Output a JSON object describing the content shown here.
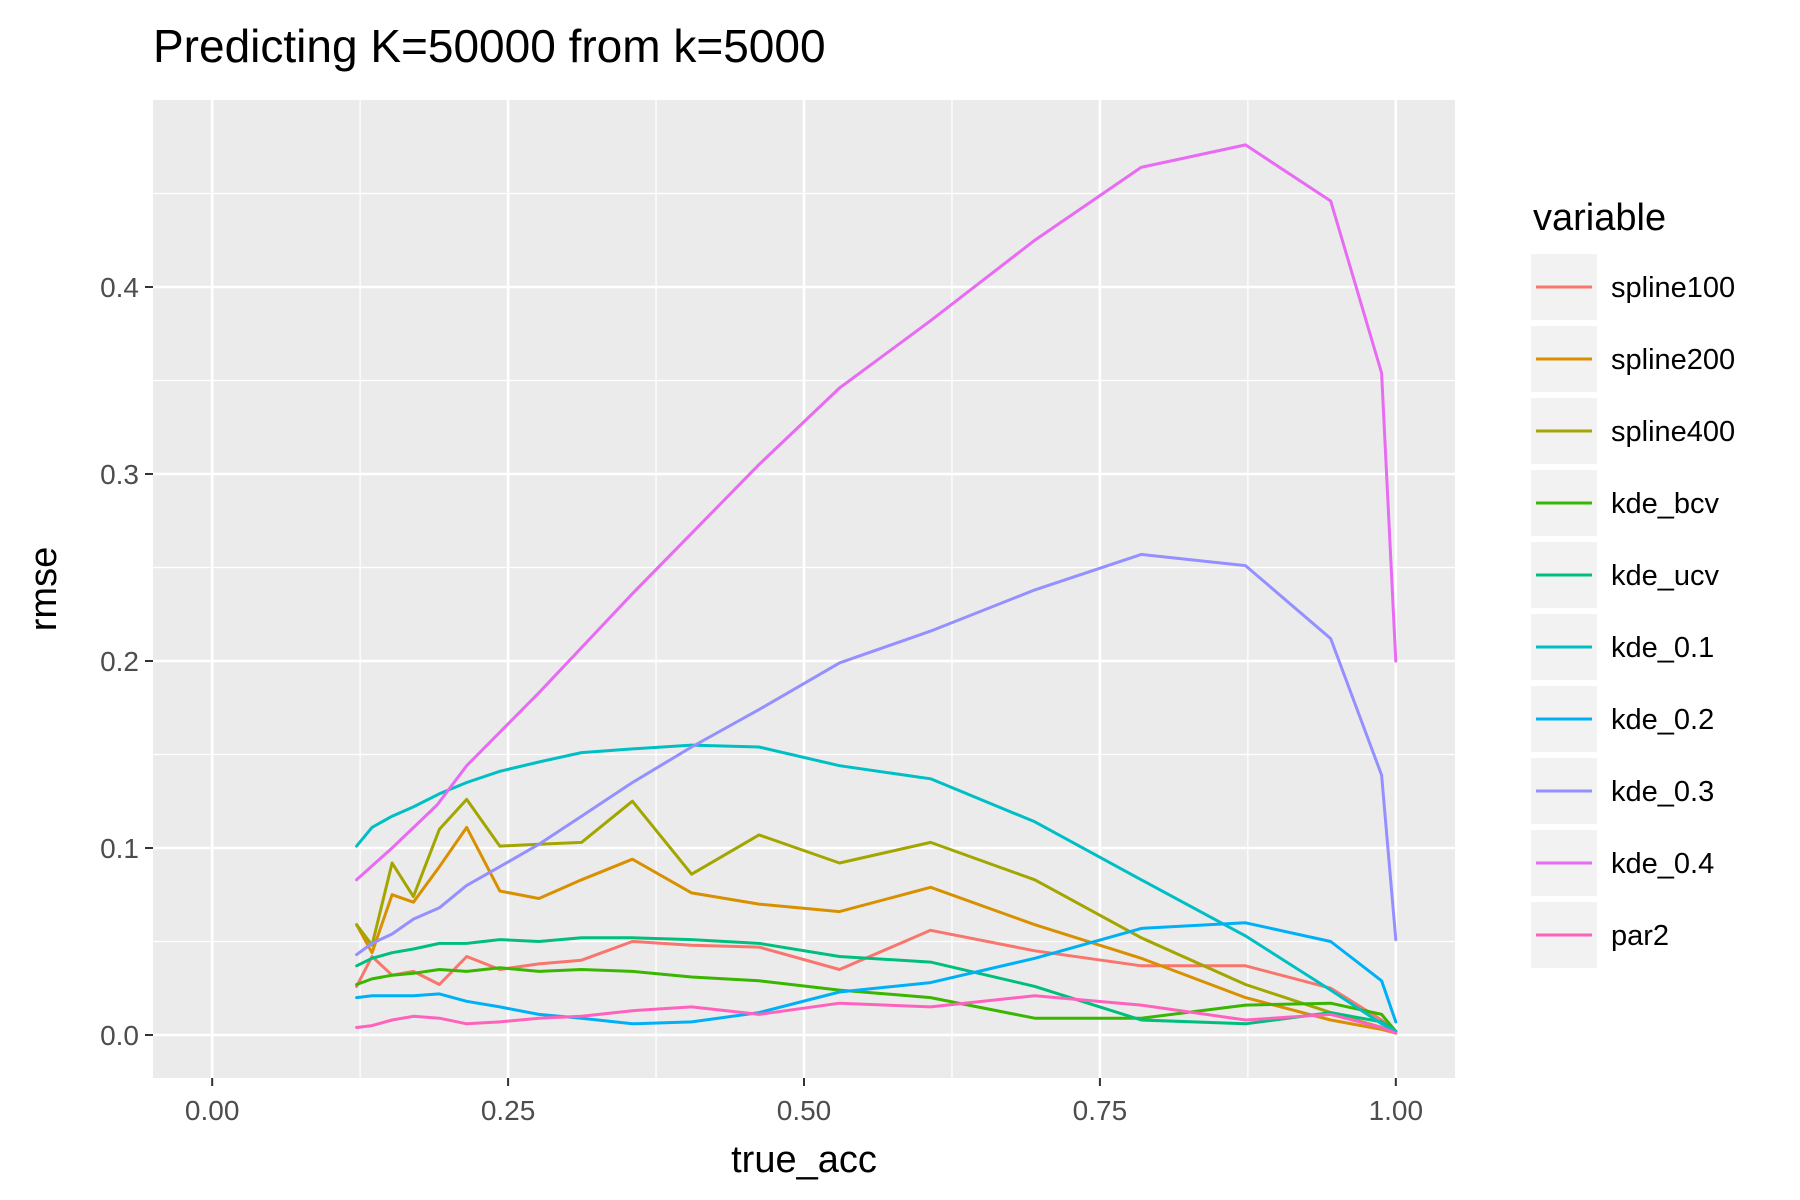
{
  "chart_data": {
    "type": "line",
    "title": "Predicting K=50000 from k=5000",
    "xlabel": "true_acc",
    "ylabel": "rmse",
    "xlim": [
      -0.05,
      1.05
    ],
    "ylim": [
      -0.023,
      0.5
    ],
    "x_ticks": [
      "0.00",
      "0.25",
      "0.50",
      "0.75",
      "1.00"
    ],
    "y_ticks": [
      "0.0",
      "0.1",
      "0.2",
      "0.3",
      "0.4"
    ],
    "grid": true,
    "legend_title": "variable",
    "legend_position": "right",
    "series": [
      {
        "name": "spline100",
        "color": "#F8766D",
        "points": [
          [
            0.122,
            0.026
          ],
          [
            0.135,
            0.042
          ],
          [
            0.152,
            0.032
          ],
          [
            0.17,
            0.034
          ],
          [
            0.192,
            0.027
          ],
          [
            0.215,
            0.042
          ],
          [
            0.243,
            0.035
          ],
          [
            0.276,
            0.038
          ],
          [
            0.312,
            0.04
          ],
          [
            0.355,
            0.05
          ],
          [
            0.405,
            0.048
          ],
          [
            0.462,
            0.047
          ],
          [
            0.53,
            0.035
          ],
          [
            0.607,
            0.056
          ],
          [
            0.695,
            0.045
          ],
          [
            0.785,
            0.037
          ],
          [
            0.873,
            0.037
          ],
          [
            0.945,
            0.025
          ],
          [
            0.988,
            0.008
          ],
          [
            1.0,
            0.002
          ]
        ]
      },
      {
        "name": "spline200",
        "color": "#D89000",
        "points": [
          [
            0.122,
            0.059
          ],
          [
            0.135,
            0.044
          ],
          [
            0.152,
            0.075
          ],
          [
            0.17,
            0.071
          ],
          [
            0.192,
            0.09
          ],
          [
            0.215,
            0.111
          ],
          [
            0.243,
            0.077
          ],
          [
            0.276,
            0.073
          ],
          [
            0.312,
            0.083
          ],
          [
            0.355,
            0.094
          ],
          [
            0.405,
            0.076
          ],
          [
            0.462,
            0.07
          ],
          [
            0.53,
            0.066
          ],
          [
            0.607,
            0.079
          ],
          [
            0.695,
            0.059
          ],
          [
            0.785,
            0.041
          ],
          [
            0.873,
            0.02
          ],
          [
            0.945,
            0.008
          ],
          [
            0.988,
            0.003
          ],
          [
            1.0,
            0.001
          ]
        ]
      },
      {
        "name": "spline400",
        "color": "#A3A500",
        "points": [
          [
            0.122,
            0.059
          ],
          [
            0.135,
            0.048
          ],
          [
            0.152,
            0.092
          ],
          [
            0.17,
            0.074
          ],
          [
            0.192,
            0.11
          ],
          [
            0.215,
            0.126
          ],
          [
            0.243,
            0.101
          ],
          [
            0.276,
            0.102
          ],
          [
            0.312,
            0.103
          ],
          [
            0.355,
            0.125
          ],
          [
            0.405,
            0.086
          ],
          [
            0.462,
            0.107
          ],
          [
            0.53,
            0.092
          ],
          [
            0.607,
            0.103
          ],
          [
            0.695,
            0.083
          ],
          [
            0.785,
            0.052
          ],
          [
            0.873,
            0.027
          ],
          [
            0.945,
            0.012
          ],
          [
            0.988,
            0.004
          ],
          [
            1.0,
            0.001
          ]
        ]
      },
      {
        "name": "kde_bcv",
        "color": "#39B600",
        "points": [
          [
            0.122,
            0.027
          ],
          [
            0.135,
            0.03
          ],
          [
            0.152,
            0.032
          ],
          [
            0.17,
            0.033
          ],
          [
            0.192,
            0.035
          ],
          [
            0.215,
            0.034
          ],
          [
            0.243,
            0.036
          ],
          [
            0.276,
            0.034
          ],
          [
            0.312,
            0.035
          ],
          [
            0.355,
            0.034
          ],
          [
            0.405,
            0.031
          ],
          [
            0.462,
            0.029
          ],
          [
            0.53,
            0.024
          ],
          [
            0.607,
            0.02
          ],
          [
            0.695,
            0.009
          ],
          [
            0.785,
            0.009
          ],
          [
            0.873,
            0.016
          ],
          [
            0.945,
            0.017
          ],
          [
            0.988,
            0.011
          ],
          [
            1.0,
            0.002
          ]
        ]
      },
      {
        "name": "kde_ucv",
        "color": "#00BF7D",
        "points": [
          [
            0.122,
            0.037
          ],
          [
            0.135,
            0.041
          ],
          [
            0.152,
            0.044
          ],
          [
            0.17,
            0.046
          ],
          [
            0.192,
            0.049
          ],
          [
            0.215,
            0.049
          ],
          [
            0.243,
            0.051
          ],
          [
            0.276,
            0.05
          ],
          [
            0.312,
            0.052
          ],
          [
            0.355,
            0.052
          ],
          [
            0.405,
            0.051
          ],
          [
            0.462,
            0.049
          ],
          [
            0.53,
            0.042
          ],
          [
            0.607,
            0.039
          ],
          [
            0.695,
            0.026
          ],
          [
            0.785,
            0.008
          ],
          [
            0.873,
            0.006
          ],
          [
            0.945,
            0.012
          ],
          [
            0.988,
            0.007
          ],
          [
            1.0,
            0.002
          ]
        ]
      },
      {
        "name": "kde_0.1",
        "color": "#00BFC4",
        "points": [
          [
            0.122,
            0.101
          ],
          [
            0.135,
            0.111
          ],
          [
            0.152,
            0.117
          ],
          [
            0.17,
            0.122
          ],
          [
            0.192,
            0.129
          ],
          [
            0.215,
            0.135
          ],
          [
            0.243,
            0.141
          ],
          [
            0.276,
            0.146
          ],
          [
            0.312,
            0.151
          ],
          [
            0.355,
            0.153
          ],
          [
            0.405,
            0.155
          ],
          [
            0.462,
            0.154
          ],
          [
            0.53,
            0.144
          ],
          [
            0.607,
            0.137
          ],
          [
            0.695,
            0.114
          ],
          [
            0.785,
            0.083
          ],
          [
            0.873,
            0.053
          ],
          [
            0.945,
            0.024
          ],
          [
            0.988,
            0.006
          ],
          [
            1.0,
            0.002
          ]
        ]
      },
      {
        "name": "kde_0.2",
        "color": "#00B0F6",
        "points": [
          [
            0.122,
            0.02
          ],
          [
            0.135,
            0.021
          ],
          [
            0.152,
            0.021
          ],
          [
            0.17,
            0.021
          ],
          [
            0.192,
            0.022
          ],
          [
            0.215,
            0.018
          ],
          [
            0.243,
            0.015
          ],
          [
            0.276,
            0.011
          ],
          [
            0.312,
            0.009
          ],
          [
            0.355,
            0.006
          ],
          [
            0.405,
            0.007
          ],
          [
            0.462,
            0.012
          ],
          [
            0.53,
            0.023
          ],
          [
            0.607,
            0.028
          ],
          [
            0.695,
            0.041
          ],
          [
            0.785,
            0.057
          ],
          [
            0.873,
            0.06
          ],
          [
            0.945,
            0.05
          ],
          [
            0.988,
            0.029
          ],
          [
            1.0,
            0.007
          ]
        ]
      },
      {
        "name": "kde_0.3",
        "color": "#9590FF",
        "points": [
          [
            0.122,
            0.043
          ],
          [
            0.135,
            0.049
          ],
          [
            0.152,
            0.054
          ],
          [
            0.17,
            0.062
          ],
          [
            0.192,
            0.068
          ],
          [
            0.215,
            0.08
          ],
          [
            0.243,
            0.09
          ],
          [
            0.276,
            0.102
          ],
          [
            0.312,
            0.117
          ],
          [
            0.355,
            0.135
          ],
          [
            0.405,
            0.154
          ],
          [
            0.462,
            0.174
          ],
          [
            0.53,
            0.199
          ],
          [
            0.607,
            0.216
          ],
          [
            0.695,
            0.238
          ],
          [
            0.785,
            0.257
          ],
          [
            0.873,
            0.251
          ],
          [
            0.945,
            0.212
          ],
          [
            0.988,
            0.139
          ],
          [
            1.0,
            0.051
          ]
        ]
      },
      {
        "name": "kde_0.4",
        "color": "#E76BF3",
        "points": [
          [
            0.122,
            0.083
          ],
          [
            0.152,
            0.1
          ],
          [
            0.19,
            0.123
          ],
          [
            0.215,
            0.144
          ],
          [
            0.276,
            0.183
          ],
          [
            0.355,
            0.236
          ],
          [
            0.462,
            0.305
          ],
          [
            0.53,
            0.346
          ],
          [
            0.607,
            0.382
          ],
          [
            0.695,
            0.425
          ],
          [
            0.785,
            0.464
          ],
          [
            0.873,
            0.476
          ],
          [
            0.945,
            0.446
          ],
          [
            0.988,
            0.354
          ],
          [
            1.0,
            0.2
          ]
        ]
      },
      {
        "name": "par2",
        "color": "#FF62BC",
        "points": [
          [
            0.122,
            0.004
          ],
          [
            0.135,
            0.005
          ],
          [
            0.152,
            0.008
          ],
          [
            0.17,
            0.01
          ],
          [
            0.192,
            0.009
          ],
          [
            0.215,
            0.006
          ],
          [
            0.243,
            0.007
          ],
          [
            0.276,
            0.009
          ],
          [
            0.312,
            0.01
          ],
          [
            0.355,
            0.013
          ],
          [
            0.405,
            0.015
          ],
          [
            0.462,
            0.011
          ],
          [
            0.53,
            0.017
          ],
          [
            0.607,
            0.015
          ],
          [
            0.695,
            0.021
          ],
          [
            0.785,
            0.016
          ],
          [
            0.873,
            0.008
          ],
          [
            0.945,
            0.011
          ],
          [
            0.988,
            0.004
          ],
          [
            1.0,
            0.001
          ]
        ]
      }
    ]
  }
}
